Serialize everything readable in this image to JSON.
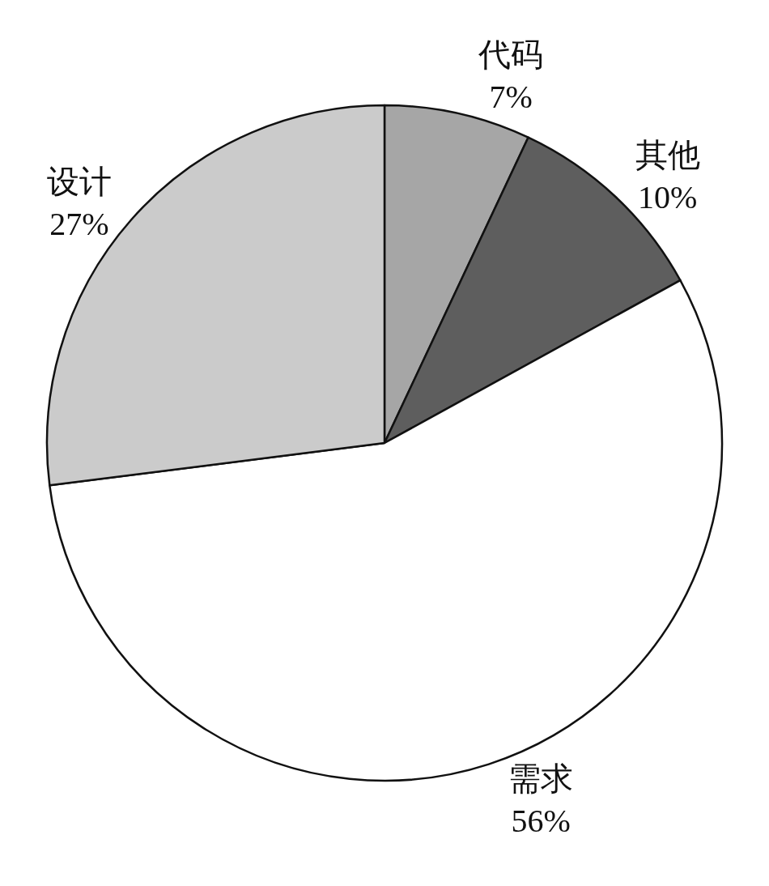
{
  "chart_data": {
    "type": "pie",
    "categories": [
      "代码",
      "其他",
      "需求",
      "设计"
    ],
    "values": [
      7,
      10,
      56,
      27
    ],
    "value_labels": [
      "7%",
      "10%",
      "56%",
      "27%"
    ],
    "colors": [
      "#a6a6a6",
      "#5e5e5e",
      "#ffffff",
      "#cbcbcb"
    ],
    "legend": false
  }
}
